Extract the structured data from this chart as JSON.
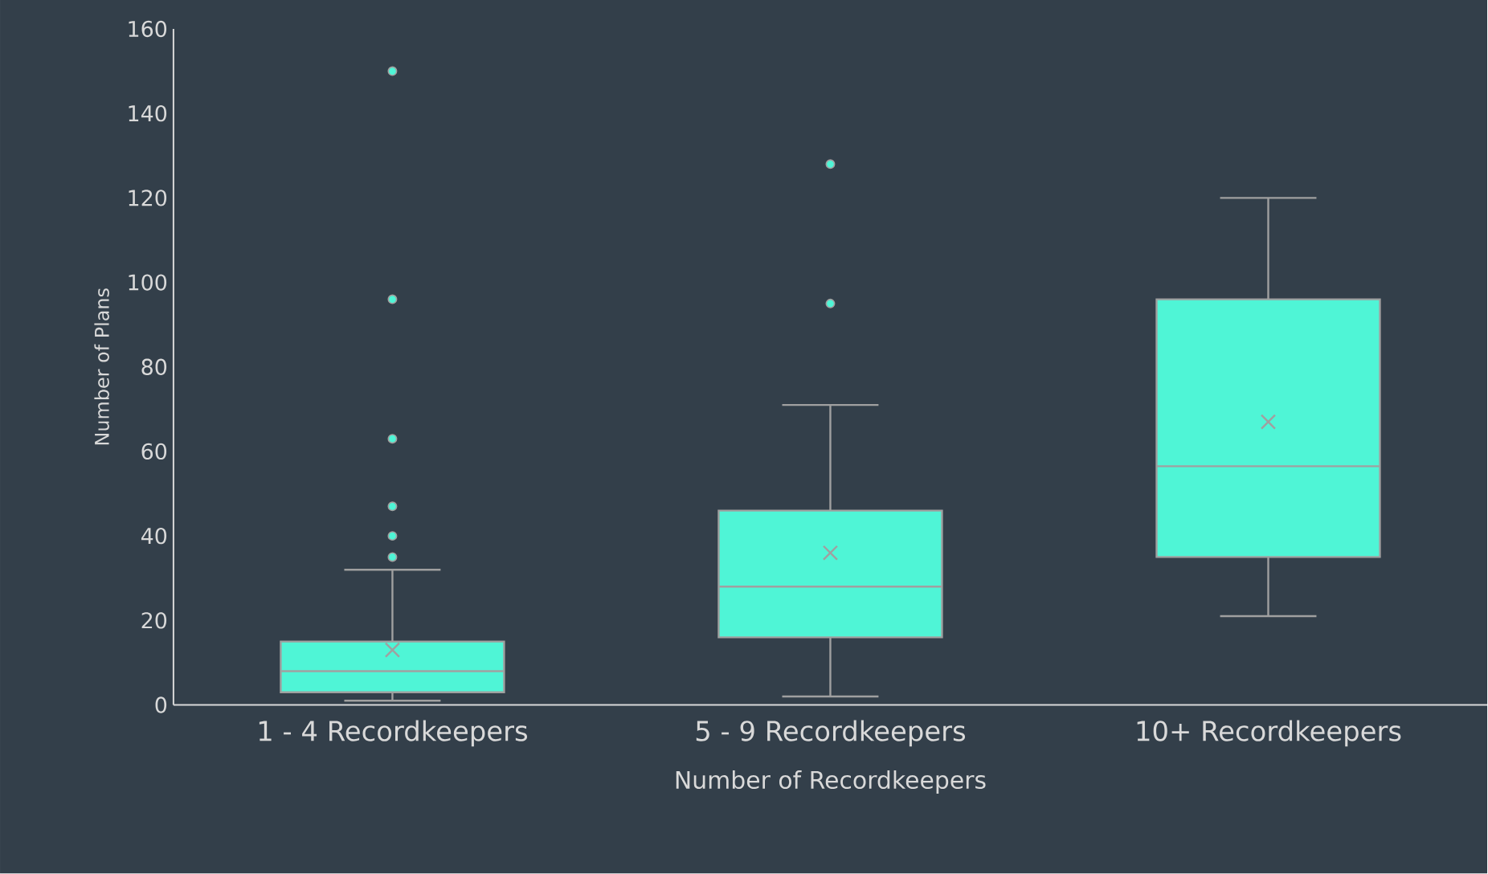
{
  "chart_data": {
    "type": "box",
    "xlabel": "Number of Recordkeepers",
    "ylabel": "Number of Plans",
    "categories": [
      "1 - 4 Recordkeepers",
      "5 - 9 Recordkeepers",
      "10+ Recordkeepers"
    ],
    "color": "#4ff5d6",
    "boxes": [
      {
        "low": 1,
        "q1": 3,
        "median": 8,
        "q3": 15,
        "high": 32,
        "mean": 13,
        "outliers": [
          35,
          40,
          47,
          63,
          96,
          150
        ]
      },
      {
        "low": 2,
        "q1": 16,
        "median": 28,
        "q3": 46,
        "high": 71,
        "mean": 36,
        "outliers": [
          95,
          128
        ]
      },
      {
        "low": 21,
        "q1": 35,
        "median": 56.5,
        "q3": 96,
        "high": 120,
        "mean": 67
      }
    ],
    "ylim": [
      0,
      160
    ],
    "yticks": [
      0,
      20,
      40,
      60,
      80,
      100,
      120,
      140,
      160
    ]
  }
}
